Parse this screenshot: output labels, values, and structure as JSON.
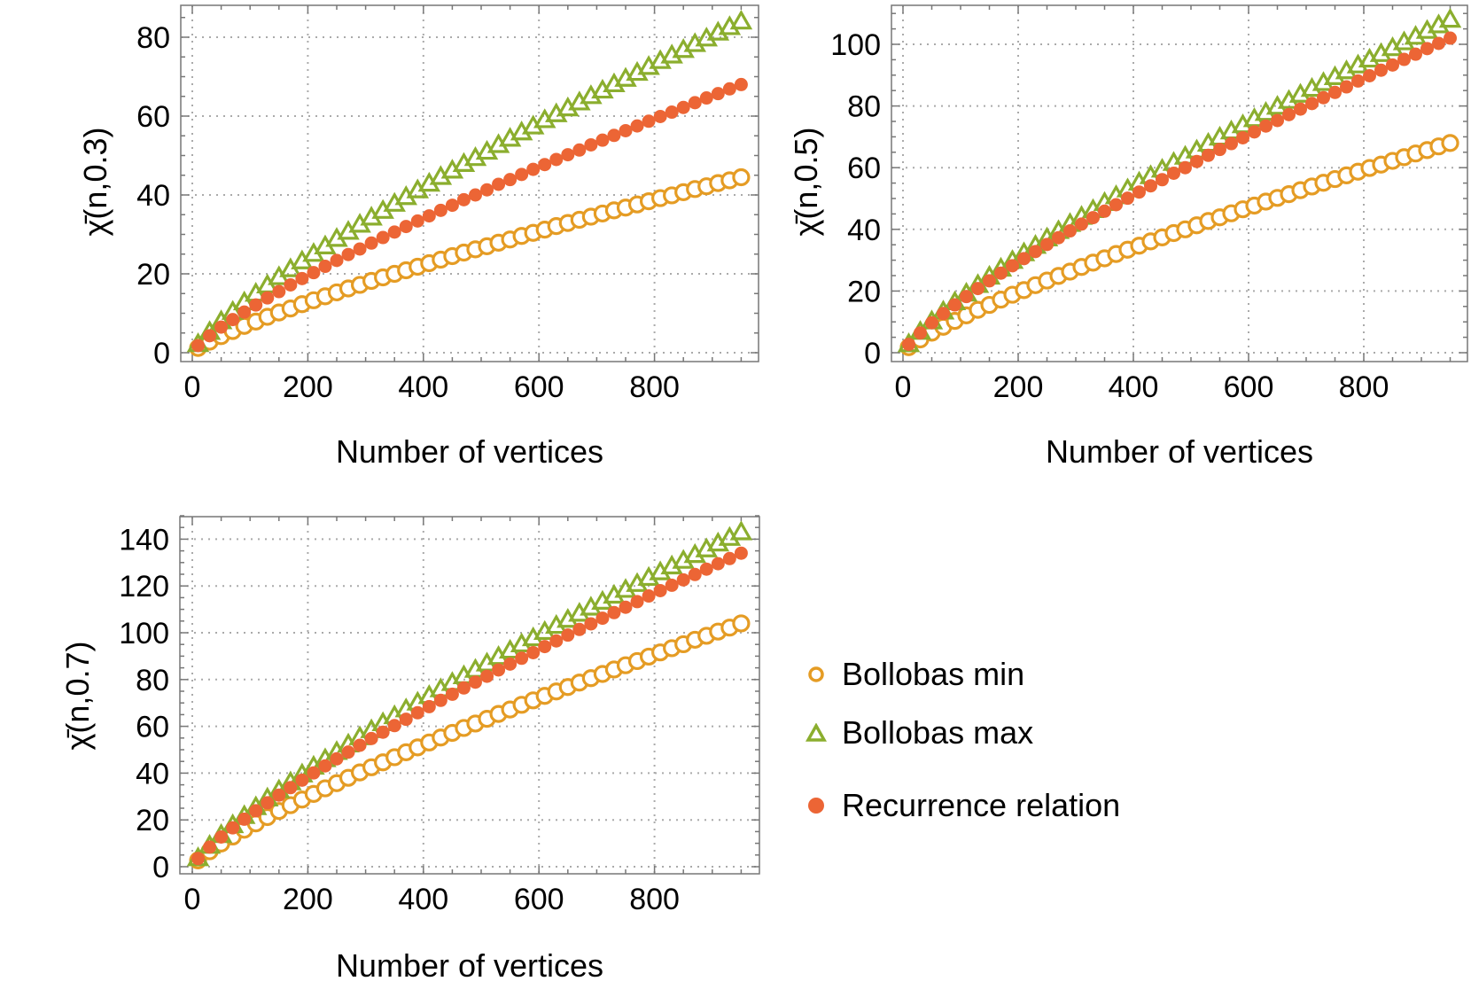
{
  "figure": {
    "legend": [
      {
        "label": "Bollobas min",
        "marker": "open-circle",
        "color": "#E59C24"
      },
      {
        "label": "Bollobas max",
        "marker": "open-triangle",
        "color": "#8BAE2E"
      },
      {
        "label": "Recurrence relation",
        "marker": "filled-circle",
        "color": "#EC6535"
      }
    ]
  },
  "chart_data": [
    {
      "type": "scatter",
      "title": "",
      "xlabel": "Number of vertices",
      "ylabel": "χ̄(n,0.3)",
      "xlim": [
        -20,
        975
      ],
      "ylim": [
        -2,
        88
      ],
      "xticks": [
        0,
        200,
        400,
        600,
        800
      ],
      "yticks": [
        0,
        20,
        40,
        60,
        80
      ],
      "grid": true,
      "x": [
        10,
        30,
        50,
        70,
        90,
        110,
        130,
        150,
        170,
        190,
        210,
        230,
        250,
        270,
        290,
        310,
        330,
        350,
        370,
        390,
        410,
        430,
        450,
        470,
        490,
        510,
        530,
        550,
        570,
        590,
        610,
        630,
        650,
        670,
        690,
        710,
        730,
        750,
        770,
        790,
        810,
        830,
        850,
        870,
        890,
        910,
        930,
        950
      ],
      "series": [
        {
          "name": "Bollobas min",
          "values": [
            1.2,
            2.8,
            4.2,
            5.5,
            6.8,
            7.9,
            9.1,
            10.2,
            11.2,
            12.3,
            13.3,
            14.3,
            15.3,
            16.3,
            17.2,
            18.2,
            19.1,
            20.0,
            20.9,
            21.8,
            22.7,
            23.6,
            24.5,
            25.4,
            26.2,
            27.0,
            27.9,
            28.7,
            29.6,
            30.4,
            31.2,
            32.1,
            32.9,
            33.7,
            34.5,
            35.3,
            36.1,
            36.8,
            37.6,
            38.4,
            39.2,
            39.9,
            40.7,
            41.5,
            42.2,
            43.0,
            43.7,
            44.5
          ]
        },
        {
          "name": "Bollobas max",
          "values": [
            2.2,
            5.3,
            8.0,
            10.4,
            12.8,
            15.0,
            17.1,
            19.2,
            21.2,
            23.2,
            25.1,
            27.0,
            28.9,
            30.7,
            32.5,
            34.3,
            36.0,
            37.8,
            39.5,
            41.2,
            42.9,
            44.6,
            46.2,
            47.9,
            49.4,
            51.0,
            52.7,
            54.3,
            55.9,
            57.4,
            59.0,
            60.5,
            62.0,
            63.5,
            65.1,
            66.5,
            68.1,
            69.5,
            71.0,
            72.5,
            74.0,
            75.4,
            76.8,
            78.3,
            79.7,
            81.2,
            82.6,
            84.0
          ]
        },
        {
          "name": "Recurrence relation",
          "values": [
            1.8,
            4.3,
            6.5,
            8.4,
            10.3,
            12.1,
            13.9,
            15.5,
            17.2,
            18.8,
            20.3,
            21.9,
            23.4,
            24.9,
            26.3,
            27.8,
            29.2,
            30.6,
            32.0,
            33.4,
            34.7,
            36.1,
            37.4,
            38.8,
            40.0,
            41.3,
            42.7,
            43.9,
            45.2,
            46.5,
            47.7,
            49.0,
            50.2,
            51.4,
            52.7,
            53.9,
            55.1,
            56.3,
            57.5,
            58.7,
            59.9,
            61.0,
            62.2,
            63.4,
            64.6,
            65.7,
            66.9,
            68.0
          ]
        }
      ]
    },
    {
      "type": "scatter",
      "title": "",
      "xlabel": "Number of vertices",
      "ylabel": "χ̄(n,0.5)",
      "xlim": [
        -20,
        975
      ],
      "ylim": [
        -2,
        113
      ],
      "xticks": [
        0,
        200,
        400,
        600,
        800
      ],
      "yticks": [
        0,
        20,
        40,
        60,
        80,
        100
      ],
      "grid": true,
      "x": [
        10,
        30,
        50,
        70,
        90,
        110,
        130,
        150,
        170,
        190,
        210,
        230,
        250,
        270,
        290,
        310,
        330,
        350,
        370,
        390,
        410,
        430,
        450,
        470,
        490,
        510,
        530,
        550,
        570,
        590,
        610,
        630,
        650,
        670,
        690,
        710,
        730,
        750,
        770,
        790,
        810,
        830,
        850,
        870,
        890,
        910,
        930,
        950
      ],
      "series": [
        {
          "name": "Bollobas min",
          "values": [
            1.8,
            4.3,
            6.5,
            8.4,
            10.3,
            12.1,
            13.9,
            15.5,
            17.2,
            18.8,
            20.3,
            21.9,
            23.4,
            24.9,
            26.3,
            27.8,
            29.2,
            30.6,
            32.0,
            33.4,
            34.7,
            36.1,
            37.4,
            38.8,
            40.0,
            41.3,
            42.7,
            43.9,
            45.2,
            46.5,
            47.7,
            49.0,
            50.2,
            51.4,
            52.7,
            53.9,
            55.1,
            56.3,
            57.5,
            58.7,
            59.9,
            61.0,
            62.2,
            63.4,
            64.6,
            65.7,
            66.9,
            68.0
          ]
        },
        {
          "name": "Bollobas max",
          "values": [
            2.8,
            6.8,
            10.2,
            13.4,
            16.4,
            19.2,
            22.0,
            24.7,
            27.3,
            29.8,
            32.3,
            34.7,
            37.1,
            39.5,
            41.8,
            44.1,
            46.3,
            48.6,
            50.8,
            53.0,
            55.2,
            57.3,
            59.4,
            61.6,
            63.6,
            65.6,
            67.8,
            69.8,
            71.8,
            73.8,
            75.8,
            77.8,
            79.8,
            81.7,
            83.7,
            85.6,
            87.5,
            89.4,
            91.3,
            93.2,
            95.1,
            96.9,
            98.8,
            100.7,
            102.5,
            104.4,
            106.2,
            108.0
          ]
        },
        {
          "name": "Recurrence relation",
          "values": [
            2.7,
            6.4,
            9.7,
            12.7,
            15.5,
            18.2,
            20.8,
            23.3,
            25.8,
            28.2,
            30.5,
            32.8,
            35.1,
            37.3,
            39.5,
            41.7,
            43.8,
            45.9,
            48.0,
            50.1,
            52.1,
            54.1,
            56.1,
            58.2,
            60.0,
            62.0,
            64.0,
            65.9,
            67.8,
            69.7,
            71.6,
            73.5,
            75.3,
            77.2,
            79.0,
            80.8,
            82.7,
            84.4,
            86.2,
            88.1,
            89.8,
            91.6,
            93.3,
            95.1,
            96.8,
            98.6,
            100.3,
            102.0
          ]
        }
      ]
    },
    {
      "type": "scatter",
      "title": "",
      "xlabel": "Number of vertices",
      "ylabel": "χ̄(n,0.7)",
      "xlim": [
        -20,
        975
      ],
      "ylim": [
        -3,
        150
      ],
      "xticks": [
        0,
        200,
        400,
        600,
        800
      ],
      "yticks": [
        0,
        20,
        40,
        60,
        80,
        100,
        120,
        140
      ],
      "grid": true,
      "x": [
        10,
        30,
        50,
        70,
        90,
        110,
        130,
        150,
        170,
        190,
        210,
        230,
        250,
        270,
        290,
        310,
        330,
        350,
        370,
        390,
        410,
        430,
        450,
        470,
        490,
        510,
        530,
        550,
        570,
        590,
        610,
        630,
        650,
        670,
        690,
        710,
        730,
        750,
        770,
        790,
        810,
        830,
        850,
        870,
        890,
        910,
        930,
        950
      ],
      "series": [
        {
          "name": "Bollobas min",
          "values": [
            2.7,
            6.6,
            9.9,
            12.9,
            15.8,
            18.5,
            21.2,
            23.8,
            26.3,
            28.7,
            31.1,
            33.5,
            35.7,
            38.0,
            40.3,
            42.5,
            44.6,
            46.8,
            48.9,
            51.0,
            53.1,
            55.2,
            57.2,
            59.3,
            61.2,
            63.2,
            65.3,
            67.2,
            69.2,
            71.1,
            73.0,
            74.9,
            76.8,
            78.7,
            80.6,
            82.4,
            84.3,
            86.1,
            87.9,
            89.8,
            91.6,
            93.4,
            95.1,
            97.0,
            98.7,
            100.5,
            102.2,
            104.0
          ]
        },
        {
          "name": "Bollobas max",
          "values": [
            3.7,
            9.0,
            13.6,
            17.8,
            21.7,
            25.5,
            29.2,
            32.7,
            36.1,
            39.5,
            42.8,
            46.0,
            49.1,
            52.3,
            55.4,
            58.4,
            61.4,
            64.4,
            67.3,
            70.2,
            73.0,
            75.9,
            78.6,
            81.5,
            84.2,
            86.9,
            89.7,
            92.4,
            95.1,
            97.7,
            100.4,
            103.0,
            105.6,
            108.2,
            110.8,
            113.3,
            115.9,
            118.4,
            120.9,
            123.5,
            125.9,
            128.4,
            130.8,
            133.3,
            135.7,
            138.2,
            140.6,
            143.0
          ]
        },
        {
          "name": "Recurrence relation",
          "values": [
            3.5,
            8.4,
            12.7,
            16.6,
            20.3,
            23.9,
            27.3,
            30.6,
            33.8,
            37.0,
            40.1,
            43.1,
            46.1,
            49.0,
            51.9,
            54.8,
            57.5,
            60.3,
            63.0,
            65.8,
            68.4,
            71.1,
            73.7,
            76.4,
            78.9,
            81.4,
            84.1,
            86.6,
            89.1,
            91.5,
            94.1,
            96.5,
            99.0,
            101.4,
            103.8,
            106.2,
            108.6,
            110.9,
            113.3,
            115.7,
            118.0,
            120.3,
            122.6,
            124.9,
            127.2,
            129.5,
            131.7,
            134.0
          ]
        }
      ]
    }
  ]
}
